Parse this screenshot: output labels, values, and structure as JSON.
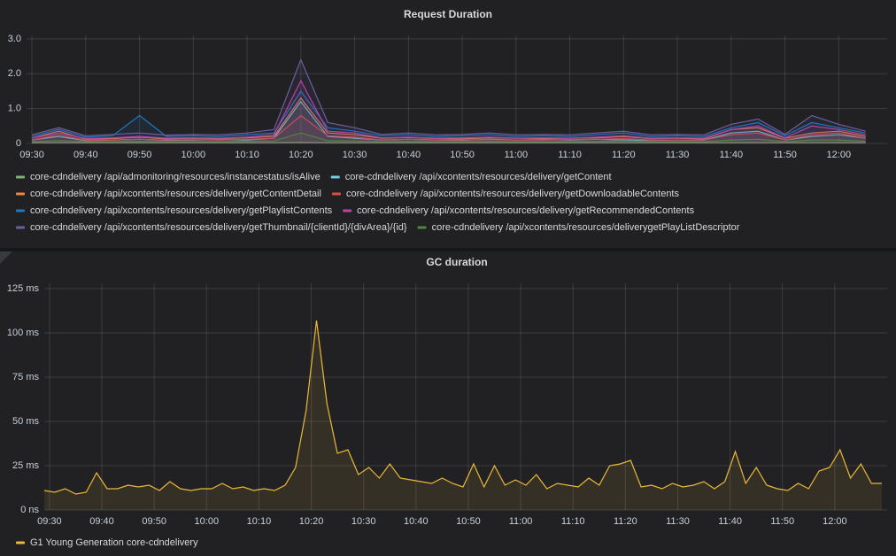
{
  "chart_data": [
    {
      "type": "line",
      "title": "Request Duration",
      "x": [
        "09:30",
        "09:35",
        "09:40",
        "09:45",
        "09:50",
        "09:55",
        "10:00",
        "10:05",
        "10:10",
        "10:15",
        "10:20",
        "10:25",
        "10:30",
        "10:35",
        "10:40",
        "10:45",
        "10:50",
        "10:55",
        "11:00",
        "11:05",
        "11:10",
        "11:15",
        "11:20",
        "11:25",
        "11:30",
        "11:35",
        "11:40",
        "11:45",
        "11:50",
        "11:55",
        "12:00",
        "12:05"
      ],
      "xlim": [
        "09:29",
        "12:09"
      ],
      "xticks": [
        "09:30",
        "09:40",
        "09:50",
        "10:00",
        "10:10",
        "10:20",
        "10:30",
        "10:40",
        "10:50",
        "11:00",
        "11:10",
        "11:20",
        "11:30",
        "11:40",
        "11:50",
        "12:00"
      ],
      "ylim": [
        0,
        3.1
      ],
      "yticks": [
        0,
        {
          "value": 1,
          "label": "1.0"
        },
        {
          "value": 2,
          "label": "2.0"
        },
        {
          "value": 3,
          "label": "3.0"
        }
      ],
      "grid": true,
      "series": [
        {
          "name": "core-cdndelivery /api/admonitoring/resources/instancestatus/isAlive",
          "color": "#7eb26d",
          "values": [
            0.02,
            0.02,
            0.02,
            0.02,
            0.02,
            0.02,
            0.02,
            0.02,
            0.02,
            0.02,
            0.03,
            0.02,
            0.02,
            0.02,
            0.02,
            0.02,
            0.02,
            0.02,
            0.02,
            0.02,
            0.02,
            0.02,
            0.02,
            0.02,
            0.02,
            0.02,
            0.02,
            0.02,
            0.02,
            0.02,
            0.02,
            0.02
          ]
        },
        {
          "name": "core-cdndelivery /api/xcontents/resources/delivery/getContent",
          "color": "#6ed0e0",
          "values": [
            0.1,
            0.2,
            0.08,
            0.1,
            0.12,
            0.09,
            0.1,
            0.11,
            0.1,
            0.15,
            1.2,
            0.2,
            0.15,
            0.1,
            0.12,
            0.1,
            0.09,
            0.12,
            0.1,
            0.11,
            0.1,
            0.12,
            0.1,
            0.09,
            0.1,
            0.1,
            0.3,
            0.35,
            0.1,
            0.2,
            0.25,
            0.15
          ]
        },
        {
          "name": "core-cdndelivery /api/xcontents/resources/delivery/getContentDetail",
          "color": "#ef843c",
          "values": [
            0.15,
            0.35,
            0.12,
            0.14,
            0.18,
            0.13,
            0.15,
            0.14,
            0.16,
            0.2,
            1.3,
            0.3,
            0.25,
            0.15,
            0.17,
            0.14,
            0.13,
            0.16,
            0.15,
            0.14,
            0.15,
            0.16,
            0.2,
            0.14,
            0.15,
            0.13,
            0.4,
            0.45,
            0.15,
            0.3,
            0.35,
            0.2
          ]
        },
        {
          "name": "core-cdndelivery /api/xcontents/resources/delivery/getDownloadableContents",
          "color": "#e24d42",
          "values": [
            0.1,
            0.25,
            0.09,
            0.1,
            0.12,
            0.1,
            0.11,
            0.1,
            0.12,
            0.15,
            0.8,
            0.22,
            0.18,
            0.1,
            0.12,
            0.1,
            0.1,
            0.11,
            0.1,
            0.1,
            0.11,
            0.12,
            0.14,
            0.1,
            0.1,
            0.1,
            0.25,
            0.3,
            0.1,
            0.25,
            0.3,
            0.15
          ]
        },
        {
          "name": "core-cdndelivery /api/xcontents/resources/delivery/getPlaylistContents",
          "color": "#1f78c1",
          "values": [
            0.2,
            0.4,
            0.18,
            0.22,
            0.8,
            0.2,
            0.22,
            0.2,
            0.25,
            0.3,
            1.5,
            0.45,
            0.35,
            0.22,
            0.25,
            0.2,
            0.22,
            0.25,
            0.2,
            0.22,
            0.2,
            0.25,
            0.3,
            0.2,
            0.22,
            0.2,
            0.45,
            0.6,
            0.22,
            0.6,
            0.45,
            0.3
          ]
        },
        {
          "name": "core-cdndelivery /api/xcontents/resources/delivery/getRecommendedContents",
          "color": "#ba43a9",
          "values": [
            0.15,
            0.3,
            0.14,
            0.16,
            0.2,
            0.15,
            0.16,
            0.15,
            0.18,
            0.25,
            1.8,
            0.35,
            0.3,
            0.16,
            0.18,
            0.15,
            0.16,
            0.18,
            0.15,
            0.16,
            0.15,
            0.18,
            0.22,
            0.15,
            0.16,
            0.15,
            0.4,
            0.5,
            0.16,
            0.5,
            0.4,
            0.25
          ]
        },
        {
          "name": "core-cdndelivery /api/xcontents/resources/delivery/getThumbnail/{clientId}/{divArea}/{id}",
          "color": "#705da0",
          "values": [
            0.25,
            0.45,
            0.22,
            0.26,
            0.3,
            0.24,
            0.26,
            0.25,
            0.3,
            0.4,
            2.4,
            0.6,
            0.45,
            0.26,
            0.3,
            0.25,
            0.26,
            0.3,
            0.25,
            0.26,
            0.25,
            0.3,
            0.35,
            0.25,
            0.26,
            0.25,
            0.55,
            0.7,
            0.26,
            0.8,
            0.55,
            0.35
          ]
        },
        {
          "name": "core-cdndelivery /api/xcontents/resources/deliverygetPlayListDescriptor",
          "color": "#508642",
          "values": [
            0.05,
            0.08,
            0.05,
            0.05,
            0.06,
            0.05,
            0.05,
            0.05,
            0.06,
            0.07,
            0.3,
            0.08,
            0.07,
            0.05,
            0.06,
            0.05,
            0.05,
            0.06,
            0.05,
            0.05,
            0.05,
            0.06,
            0.07,
            0.05,
            0.05,
            0.05,
            0.1,
            0.12,
            0.05,
            0.1,
            0.1,
            0.06
          ]
        }
      ]
    },
    {
      "type": "line",
      "title": "GC duration",
      "x": [
        "09:29",
        "09:31",
        "09:33",
        "09:35",
        "09:37",
        "09:39",
        "09:41",
        "09:43",
        "09:45",
        "09:47",
        "09:49",
        "09:51",
        "09:53",
        "09:55",
        "09:57",
        "09:59",
        "10:01",
        "10:03",
        "10:05",
        "10:07",
        "10:09",
        "10:11",
        "10:13",
        "10:15",
        "10:17",
        "10:19",
        "10:21",
        "10:23",
        "10:25",
        "10:27",
        "10:29",
        "10:31",
        "10:33",
        "10:35",
        "10:37",
        "10:39",
        "10:41",
        "10:43",
        "10:45",
        "10:47",
        "10:49",
        "10:51",
        "10:53",
        "10:55",
        "10:57",
        "10:59",
        "11:01",
        "11:03",
        "11:05",
        "11:07",
        "11:09",
        "11:11",
        "11:13",
        "11:15",
        "11:17",
        "11:19",
        "11:21",
        "11:23",
        "11:25",
        "11:27",
        "11:29",
        "11:31",
        "11:33",
        "11:35",
        "11:37",
        "11:39",
        "11:41",
        "11:43",
        "11:45",
        "11:47",
        "11:49",
        "11:51",
        "11:53",
        "11:55",
        "11:57",
        "11:59",
        "12:01",
        "12:03",
        "12:05",
        "12:07",
        "12:09"
      ],
      "xlim": [
        "09:29",
        "12:10"
      ],
      "xticks": [
        "09:30",
        "09:40",
        "09:50",
        "10:00",
        "10:10",
        "10:20",
        "10:30",
        "10:40",
        "10:50",
        "11:00",
        "11:10",
        "11:20",
        "11:30",
        "11:40",
        "11:50",
        "12:00"
      ],
      "ylim": [
        0,
        128
      ],
      "yticks": [
        {
          "value": 0,
          "label": "0 ns"
        },
        {
          "value": 25,
          "label": "25 ms"
        },
        {
          "value": 50,
          "label": "50 ms"
        },
        {
          "value": 75,
          "label": "75 ms"
        },
        {
          "value": 100,
          "label": "100 ms"
        },
        {
          "value": 125,
          "label": "125 ms"
        }
      ],
      "grid": true,
      "series": [
        {
          "name": "G1 Young Generation core-cdndelivery",
          "color": "#eab839",
          "values": [
            11,
            10,
            12,
            9,
            10,
            21,
            12,
            12,
            14,
            13,
            14,
            11,
            16,
            12,
            11,
            12,
            12,
            15,
            12,
            13,
            11,
            12,
            11,
            14,
            24,
            56,
            107,
            60,
            32,
            34,
            20,
            24,
            18,
            26,
            18,
            17,
            16,
            15,
            18,
            15,
            13,
            26,
            13,
            25,
            14,
            17,
            14,
            20,
            12,
            15,
            14,
            13,
            18,
            14,
            25,
            26,
            28,
            13,
            14,
            12,
            15,
            13,
            14,
            16,
            12,
            16,
            33,
            15,
            24,
            14,
            12,
            11,
            15,
            12,
            22,
            24,
            34,
            18,
            26,
            15,
            15
          ]
        }
      ]
    }
  ]
}
